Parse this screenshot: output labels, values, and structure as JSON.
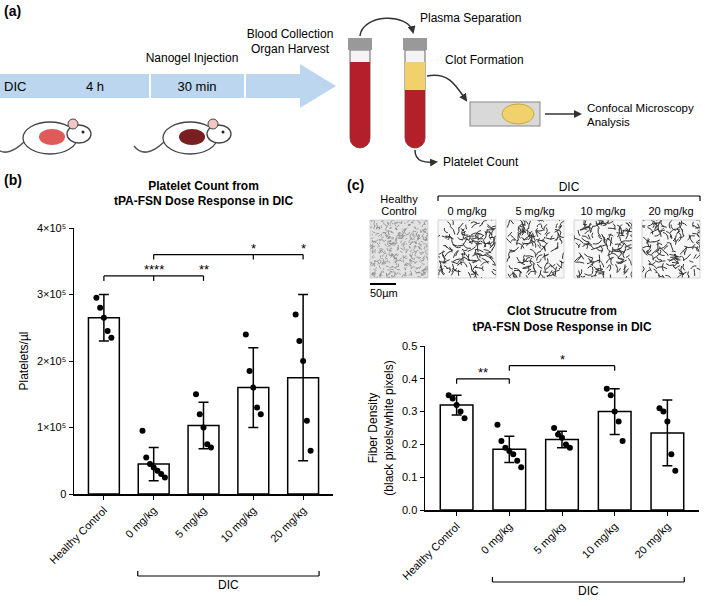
{
  "diagram": {
    "label": "(a)",
    "start": "DIC",
    "first_interval": "4 h",
    "injection": "Nanogel Injection",
    "second_interval": "30 min",
    "collection": [
      "Blood Collection",
      "Organ Harvest"
    ],
    "separation": "Plasma Separation",
    "clot": "Clot Formation",
    "count": "Platelet Count",
    "analysis": [
      "Confocal Microscopy",
      "Analysis"
    ]
  },
  "images": {
    "label": "(c)",
    "group": {
      "label": "DIC",
      "columns": [
        "0 mg/kg",
        "5 mg/kg",
        "10 mg/kg",
        "20 mg/kg"
      ]
    },
    "columns": [
      "Healthy Control",
      "0 mg/kg",
      "5 mg/kg",
      "10 mg/kg",
      "20 mg/kg"
    ],
    "scale_bar": "50µm"
  },
  "chart_data": [
    {
      "type": "bar",
      "panel": "(b)",
      "title": "Platelet Count from\ntPA-FSN Dose Response in DIC",
      "y_label": "Platelets/µl",
      "categories": [
        "Healthy Control",
        "0 mg/kg",
        "5 mg/kg",
        "10 mg/kg",
        "20 mg/kg"
      ],
      "values": [
        265000,
        45000,
        103000,
        160000,
        175000
      ],
      "errors": [
        35000,
        25000,
        35000,
        60000,
        125000
      ],
      "points": [
        [
          295000,
          280000,
          265000,
          245000,
          235000
        ],
        [
          95000,
          55000,
          45000,
          40000,
          35000,
          30000,
          25000
        ],
        [
          150000,
          120000,
          100000,
          75000,
          70000
        ],
        [
          240000,
          185000,
          160000,
          130000,
          120000
        ],
        [
          270000,
          230000,
          200000,
          110000,
          65000
        ]
      ],
      "color": "#ffffff",
      "ylim": [
        0,
        400000
      ],
      "yticks": [
        0,
        {
          "value": 100000,
          "label": "1×10⁵"
        },
        {
          "value": 200000,
          "label": "2×10⁵"
        },
        {
          "value": 300000,
          "label": "3×10⁵"
        },
        {
          "value": 400000,
          "label": "4×10⁵"
        }
      ],
      "grid": false,
      "group": {
        "label": "DIC",
        "categories": [
          "0 mg/kg",
          "5 mg/kg",
          "10 mg/kg",
          "20 mg/kg"
        ]
      },
      "comparisons": [
        {
          "from": "Healthy Control",
          "to": "0 mg/kg",
          "label": "****"
        },
        {
          "from": "Healthy Control",
          "to": "5 mg/kg",
          "label": "**"
        },
        {
          "from": "0 mg/kg",
          "to": "10 mg/kg",
          "label": "*"
        },
        {
          "from": "0 mg/kg",
          "to": "20 mg/kg",
          "label": "*"
        }
      ]
    },
    {
      "type": "bar",
      "title": "Clot Strucutre from\ntPA-FSN Dose Response in DIC",
      "y_label": "Fiber Density\n(black pixels/white pixels)",
      "categories": [
        "Healthy Control",
        "0 mg/kg",
        "5 mg/kg",
        "10 mg/kg",
        "20 mg/kg"
      ],
      "values": [
        0.32,
        0.185,
        0.215,
        0.3,
        0.235
      ],
      "errors": [
        0.03,
        0.04,
        0.025,
        0.07,
        0.1
      ],
      "points": [
        [
          0.35,
          0.34,
          0.32,
          0.3,
          0.28
        ],
        [
          0.26,
          0.21,
          0.19,
          0.18,
          0.17,
          0.15,
          0.13
        ],
        [
          0.25,
          0.23,
          0.22,
          0.2,
          0.19
        ],
        [
          0.37,
          0.35,
          0.3,
          0.27,
          0.21
        ],
        [
          0.31,
          0.3,
          0.27,
          0.17,
          0.12
        ]
      ],
      "color": "#ffffff",
      "ylim": [
        0,
        0.5
      ],
      "yticks": [
        {
          "value": 0,
          "label": "0.0"
        },
        0.1,
        0.2,
        0.3,
        0.4,
        0.5
      ],
      "grid": false,
      "group": {
        "label": "DIC",
        "categories": [
          "0 mg/kg",
          "5 mg/kg",
          "10 mg/kg",
          "20 mg/kg"
        ]
      },
      "comparisons": [
        {
          "from": "Healthy Control",
          "to": "0 mg/kg",
          "label": "**"
        },
        {
          "from": "0 mg/kg",
          "to": "10 mg/kg",
          "label": "*"
        }
      ]
    }
  ]
}
